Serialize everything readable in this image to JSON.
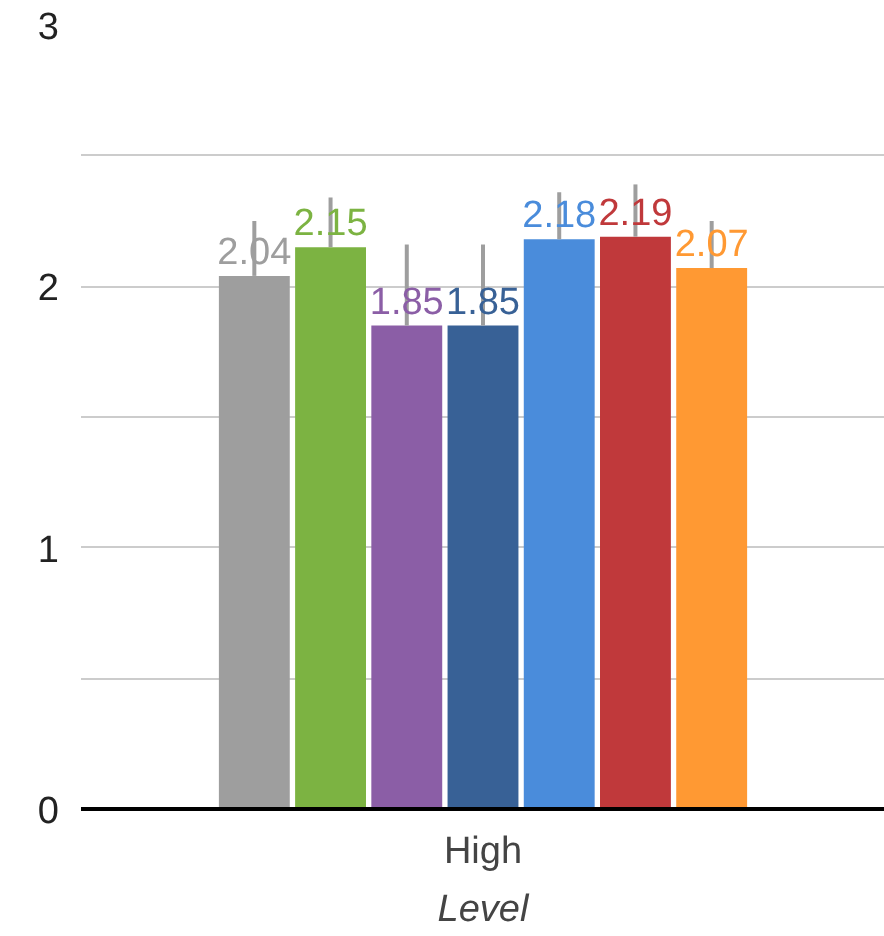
{
  "chart_data": {
    "type": "bar",
    "xlabel": "Level",
    "categories": [
      "High"
    ],
    "series": [
      {
        "color": "#9e9e9e",
        "values": [
          2.04
        ],
        "errors": [
          [
            2.04,
            2.25
          ]
        ]
      },
      {
        "color": "#7cb342",
        "values": [
          2.15
        ],
        "errors": [
          [
            2.15,
            2.34
          ]
        ]
      },
      {
        "color": "#8b5ea6",
        "values": [
          1.85
        ],
        "errors": [
          [
            1.85,
            2.16
          ]
        ]
      },
      {
        "color": "#386196",
        "values": [
          1.85
        ],
        "errors": [
          [
            1.85,
            2.16
          ]
        ]
      },
      {
        "color": "#4a8cdb",
        "values": [
          2.18
        ],
        "errors": [
          [
            2.18,
            2.36
          ]
        ]
      },
      {
        "color": "#c0393b",
        "values": [
          2.19
        ],
        "errors": [
          [
            2.19,
            2.39
          ]
        ]
      },
      {
        "color": "#ff9933",
        "values": [
          2.07
        ],
        "errors": [
          [
            2.07,
            2.25
          ]
        ]
      }
    ],
    "ylim": [
      0,
      3
    ],
    "yticks": [
      0,
      {
        "value": 0.5,
        "label": null
      },
      1,
      {
        "value": 1.5,
        "label": null
      },
      2,
      {
        "value": 2.5,
        "label": null
      },
      3
    ],
    "grid": "y",
    "data_labels": true
  }
}
